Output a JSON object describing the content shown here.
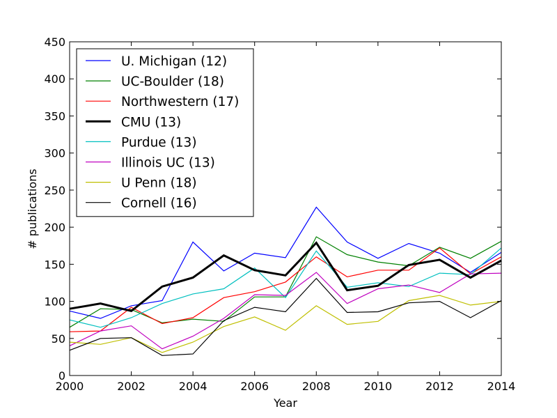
{
  "chart_data": {
    "type": "line",
    "title": "",
    "xlabel": "Year",
    "ylabel": "# publications",
    "xlim": [
      2000,
      2014
    ],
    "ylim": [
      0,
      450
    ],
    "xticks": [
      2000,
      2002,
      2004,
      2006,
      2008,
      2010,
      2012,
      2014
    ],
    "yticks": [
      0,
      50,
      100,
      150,
      200,
      250,
      300,
      350,
      400,
      450
    ],
    "grid": false,
    "legend_position": "top-left",
    "x": [
      2000,
      2001,
      2002,
      2003,
      2004,
      2005,
      2006,
      2007,
      2008,
      2009,
      2010,
      2011,
      2012,
      2013,
      2014
    ],
    "series": [
      {
        "name": "U. Michigan (12)",
        "color": "#0000ff",
        "bold": false,
        "values": [
          87,
          77,
          94,
          101,
          180,
          141,
          165,
          159,
          227,
          180,
          158,
          178,
          165,
          139,
          166
        ]
      },
      {
        "name": "UC-Boulder (18)",
        "color": "#008000",
        "bold": false,
        "values": [
          65,
          90,
          89,
          71,
          76,
          73,
          106,
          106,
          187,
          163,
          153,
          148,
          173,
          158,
          181
        ]
      },
      {
        "name": "Northwestern (17)",
        "color": "#ff0000",
        "bold": false,
        "values": [
          59,
          60,
          92,
          70,
          78,
          105,
          113,
          126,
          160,
          133,
          142,
          142,
          172,
          137,
          160
        ]
      },
      {
        "name": "CMU (13)",
        "color": "#000000",
        "bold": true,
        "values": [
          90,
          97,
          87,
          120,
          132,
          162,
          142,
          135,
          179,
          115,
          121,
          149,
          156,
          132,
          155
        ]
      },
      {
        "name": "Purdue (13)",
        "color": "#00bfbf",
        "bold": false,
        "values": [
          75,
          65,
          78,
          97,
          110,
          117,
          145,
          105,
          168,
          119,
          125,
          120,
          138,
          136,
          172
        ]
      },
      {
        "name": "Illinois UC (13)",
        "color": "#bf00bf",
        "bold": false,
        "values": [
          40,
          60,
          67,
          36,
          53,
          77,
          109,
          108,
          139,
          97,
          117,
          122,
          112,
          137,
          138
        ]
      },
      {
        "name": "U Penn (18)",
        "color": "#bfbf00",
        "bold": false,
        "values": [
          45,
          42,
          51,
          31,
          45,
          66,
          79,
          61,
          94,
          69,
          73,
          101,
          108,
          95,
          100
        ]
      },
      {
        "name": "Cornell (16)",
        "color": "#000000",
        "bold": false,
        "values": [
          34,
          50,
          51,
          27,
          29,
          74,
          92,
          86,
          131,
          85,
          86,
          98,
          100,
          78,
          101
        ]
      }
    ]
  }
}
